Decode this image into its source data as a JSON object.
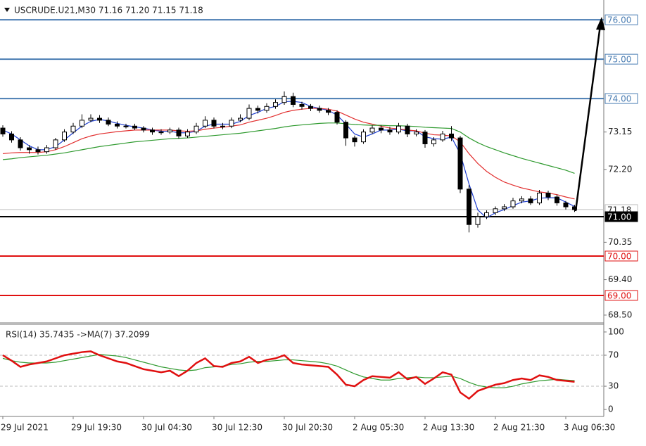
{
  "chart_data": {
    "type": "candlestick",
    "title": "USCRUDE.U21,M30  71.16 71.20 71.15 71.18",
    "categories": [
      "29 Jul 2021",
      null,
      null,
      null,
      null,
      null,
      null,
      null,
      "29 Jul 19:30",
      null,
      null,
      null,
      null,
      null,
      null,
      null,
      "30 Jul 04:30",
      null,
      null,
      null,
      null,
      null,
      null,
      null,
      "30 Jul 12:30",
      null,
      null,
      null,
      null,
      null,
      null,
      null,
      "30 Jul 20:30",
      null,
      null,
      null,
      null,
      null,
      null,
      null,
      "2 Aug 05:30",
      null,
      null,
      null,
      null,
      null,
      null,
      null,
      "2 Aug 13:30",
      null,
      null,
      null,
      null,
      null,
      null,
      null,
      "2 Aug 21:30",
      null,
      null,
      null,
      null,
      null,
      null,
      null,
      "3 Aug 06:30",
      null
    ],
    "open": [
      73.25,
      73.1,
      72.95,
      72.75,
      72.7,
      72.65,
      72.75,
      72.95,
      73.15,
      73.3,
      73.45,
      73.5,
      73.45,
      73.35,
      73.3,
      73.3,
      73.25,
      73.2,
      73.15,
      73.15,
      73.2,
      73.05,
      73.15,
      73.3,
      73.45,
      73.3,
      73.3,
      73.45,
      73.5,
      73.75,
      73.7,
      73.8,
      73.9,
      74.05,
      73.85,
      73.8,
      73.75,
      73.7,
      73.65,
      73.4,
      73.0,
      72.9,
      73.15,
      73.25,
      73.2,
      73.15,
      73.3,
      73.1,
      73.15,
      72.85,
      72.95,
      73.1,
      73.0,
      71.7,
      70.8,
      71.0,
      71.1,
      71.2,
      71.25,
      71.4,
      71.45,
      71.35,
      71.6,
      71.5,
      71.35,
      71.25
    ],
    "high": [
      73.32,
      73.17,
      73.02,
      72.82,
      72.78,
      72.82,
      73.0,
      73.22,
      73.38,
      73.6,
      73.6,
      73.58,
      73.52,
      73.42,
      73.36,
      73.36,
      73.3,
      73.26,
      73.22,
      73.26,
      73.26,
      73.22,
      73.38,
      73.55,
      73.52,
      73.38,
      73.52,
      73.6,
      73.85,
      73.82,
      73.88,
      73.98,
      74.18,
      74.15,
      73.92,
      73.86,
      73.82,
      73.76,
      73.7,
      73.45,
      73.06,
      73.22,
      73.32,
      73.32,
      73.28,
      73.38,
      73.36,
      73.22,
      73.2,
      73.02,
      73.18,
      73.3,
      73.05,
      71.8,
      71.1,
      71.16,
      71.26,
      71.32,
      71.48,
      71.52,
      71.52,
      71.68,
      71.66,
      71.56,
      71.4,
      71.3
    ],
    "low": [
      73.03,
      72.88,
      72.68,
      72.6,
      72.58,
      72.6,
      72.7,
      72.9,
      73.1,
      73.25,
      73.4,
      73.38,
      73.3,
      73.24,
      73.24,
      73.2,
      73.14,
      73.08,
      73.08,
      73.1,
      72.98,
      73.0,
      73.1,
      73.25,
      73.24,
      73.22,
      73.25,
      73.4,
      73.45,
      73.62,
      73.64,
      73.74,
      73.84,
      73.78,
      73.72,
      73.68,
      73.64,
      73.58,
      73.34,
      72.8,
      72.78,
      72.85,
      73.1,
      73.12,
      73.08,
      73.1,
      73.02,
      73.04,
      72.75,
      72.78,
      72.9,
      72.92,
      71.6,
      70.6,
      70.72,
      70.94,
      71.04,
      71.14,
      71.2,
      71.34,
      71.3,
      71.3,
      71.42,
      71.28,
      71.18,
      71.12
    ],
    "close": [
      73.1,
      72.95,
      72.75,
      72.7,
      72.65,
      72.75,
      72.95,
      73.15,
      73.3,
      73.45,
      73.5,
      73.45,
      73.35,
      73.3,
      73.3,
      73.25,
      73.2,
      73.15,
      73.15,
      73.2,
      73.05,
      73.15,
      73.3,
      73.45,
      73.3,
      73.3,
      73.45,
      73.5,
      73.75,
      73.7,
      73.8,
      73.9,
      74.05,
      73.85,
      73.8,
      73.75,
      73.7,
      73.65,
      73.4,
      73.0,
      72.9,
      73.15,
      73.25,
      73.2,
      73.15,
      73.3,
      73.1,
      73.15,
      72.85,
      72.95,
      73.1,
      73.0,
      71.7,
      70.8,
      71.0,
      71.1,
      71.2,
      71.25,
      71.4,
      71.45,
      71.35,
      71.6,
      71.5,
      71.35,
      71.25,
      71.18
    ],
    "up_color": "#ffffff",
    "down_color": "#000000",
    "moving_averages": [
      {
        "color": "#1f3fd0",
        "values": [
          73.2,
          73.1,
          72.95,
          72.8,
          72.7,
          72.7,
          72.78,
          72.95,
          73.13,
          73.3,
          73.42,
          73.47,
          73.43,
          73.37,
          73.32,
          73.28,
          73.25,
          73.2,
          73.17,
          73.17,
          73.13,
          73.13,
          73.17,
          73.3,
          73.35,
          73.35,
          73.35,
          73.42,
          73.57,
          73.65,
          73.75,
          73.8,
          73.92,
          73.93,
          73.9,
          73.8,
          73.75,
          73.7,
          73.58,
          73.35,
          73.1,
          73.02,
          73.1,
          73.2,
          73.2,
          73.22,
          73.18,
          73.18,
          73.03,
          72.98,
          72.97,
          73.02,
          72.6,
          71.83,
          71.17,
          70.97,
          71.1,
          71.18,
          71.28,
          71.37,
          71.4,
          71.47,
          71.48,
          71.48,
          71.37,
          71.26
        ]
      },
      {
        "color": "#e23030",
        "values": [
          72.6,
          72.62,
          72.63,
          72.63,
          72.63,
          72.65,
          72.7,
          72.78,
          72.88,
          72.98,
          73.05,
          73.1,
          73.13,
          73.16,
          73.18,
          73.2,
          73.2,
          73.2,
          73.2,
          73.2,
          73.18,
          73.17,
          73.18,
          73.22,
          73.25,
          73.27,
          73.3,
          73.33,
          73.4,
          73.45,
          73.5,
          73.57,
          73.65,
          73.7,
          73.73,
          73.75,
          73.75,
          73.73,
          73.68,
          73.58,
          73.48,
          73.4,
          73.35,
          73.3,
          73.25,
          73.23,
          73.2,
          73.18,
          73.12,
          73.08,
          73.07,
          73.05,
          72.9,
          72.6,
          72.35,
          72.15,
          72.0,
          71.88,
          71.8,
          71.73,
          71.68,
          71.63,
          71.6,
          71.56,
          71.5,
          71.45
        ]
      },
      {
        "color": "#2f9a2f",
        "values": [
          72.45,
          72.47,
          72.5,
          72.52,
          72.54,
          72.56,
          72.59,
          72.62,
          72.66,
          72.7,
          72.74,
          72.78,
          72.81,
          72.84,
          72.87,
          72.9,
          72.92,
          72.94,
          72.96,
          72.98,
          72.99,
          73.0,
          73.02,
          73.04,
          73.06,
          73.08,
          73.1,
          73.12,
          73.15,
          73.18,
          73.21,
          73.24,
          73.28,
          73.31,
          73.33,
          73.35,
          73.37,
          73.38,
          73.38,
          73.36,
          73.34,
          73.33,
          73.32,
          73.32,
          73.31,
          73.31,
          73.3,
          73.29,
          73.27,
          73.26,
          73.25,
          73.24,
          73.15,
          73.0,
          72.88,
          72.78,
          72.7,
          72.62,
          72.55,
          72.48,
          72.42,
          72.36,
          72.3,
          72.24,
          72.18,
          72.1
        ]
      }
    ],
    "ylim": [
      68.32,
      76.36
    ],
    "yticks": [
      73.15,
      {
        "value": 72.2,
        "label": "72.20"
      },
      70.35,
      {
        "value": 69.4,
        "label": "69.40"
      },
      {
        "value": 68.5,
        "label": "68.50"
      }
    ],
    "levels": [
      {
        "value": 76,
        "label": "76.00",
        "color": "#4a7db3"
      },
      {
        "value": 75,
        "label": "75.00",
        "color": "#4a7db3"
      },
      {
        "value": 74,
        "label": "74.00",
        "color": "#4a7db3"
      },
      {
        "value": 71,
        "label": "71.00",
        "color": "#000000",
        "style": "filled"
      },
      {
        "value": 70,
        "label": "70.00",
        "color": "#e01010"
      },
      {
        "value": 69,
        "label": "69.00",
        "color": "#e01010"
      }
    ],
    "current": {
      "value": 71.18,
      "label": "71.18",
      "color": "#c0c0c0"
    },
    "rsi": {
      "title": "RSI(14) 35.7435  ->MA(7) 37.2099",
      "values": [
        70,
        63,
        55,
        58,
        60,
        62,
        66,
        70,
        72,
        74,
        75,
        70,
        66,
        62,
        60,
        56,
        52,
        50,
        48,
        50,
        43,
        50,
        60,
        66,
        56,
        55,
        60,
        62,
        68,
        60,
        64,
        66,
        70,
        60,
        58,
        57,
        56,
        55,
        45,
        32,
        30,
        38,
        43,
        42,
        41,
        48,
        39,
        42,
        33,
        40,
        48,
        45,
        22,
        14,
        24,
        28,
        32,
        34,
        38,
        40,
        38,
        44,
        42,
        38,
        37,
        35.74
      ],
      "color": "#e01010",
      "ma_values": [
        66,
        63,
        61,
        60,
        60,
        60,
        61,
        63,
        65,
        67,
        69,
        71,
        70,
        69,
        67,
        64,
        61,
        58,
        55,
        53,
        51,
        50,
        51,
        54,
        55,
        56,
        58,
        59,
        61,
        62,
        62,
        63,
        64,
        64,
        63,
        62,
        61,
        59,
        56,
        51,
        46,
        42,
        40,
        38,
        38,
        40,
        41,
        42,
        41,
        41,
        42,
        43,
        40,
        35,
        31,
        29,
        28,
        28,
        30,
        33,
        35,
        37,
        38,
        39,
        38,
        37.21
      ],
      "ma_color": "#2f9a2f",
      "ylim": [
        -9,
        109
      ],
      "yticks": [
        100,
        70,
        30,
        0
      ],
      "dashed_levels": [
        70,
        30
      ]
    }
  }
}
